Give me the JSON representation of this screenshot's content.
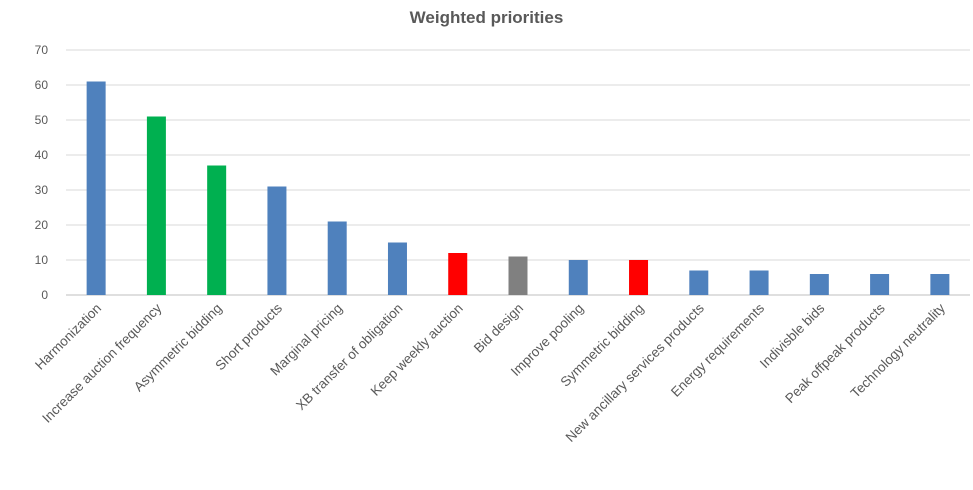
{
  "chart_data": {
    "type": "bar",
    "title": "Weighted priorities",
    "xlabel": "",
    "ylabel": "",
    "ylim": [
      0,
      70
    ],
    "yticks": [
      0,
      10,
      20,
      30,
      40,
      50,
      60,
      70
    ],
    "grid": true,
    "legend": "none",
    "categories": [
      "Harmonization",
      "Increase auction frequency",
      "Asymmetric bidding",
      "Short products",
      "Marginal pricing",
      "XB transfer of obligation",
      "Keep weekly auction",
      "Bid design",
      "Improve pooling",
      "Symmetric bidding",
      "New ancillary services products",
      "Energy requirements",
      "Indivisble bids",
      "Peak offpeak products",
      "Technology neutrality"
    ],
    "values": [
      61,
      51,
      37,
      31,
      21,
      15,
      12,
      11,
      10,
      10,
      7,
      7,
      6,
      6,
      6
    ],
    "bar_colors": [
      "#4F81BD",
      "#00B050",
      "#00B050",
      "#4F81BD",
      "#4F81BD",
      "#4F81BD",
      "#FF0000",
      "#808080",
      "#4F81BD",
      "#FF0000",
      "#4F81BD",
      "#4F81BD",
      "#4F81BD",
      "#4F81BD",
      "#4F81BD"
    ]
  }
}
